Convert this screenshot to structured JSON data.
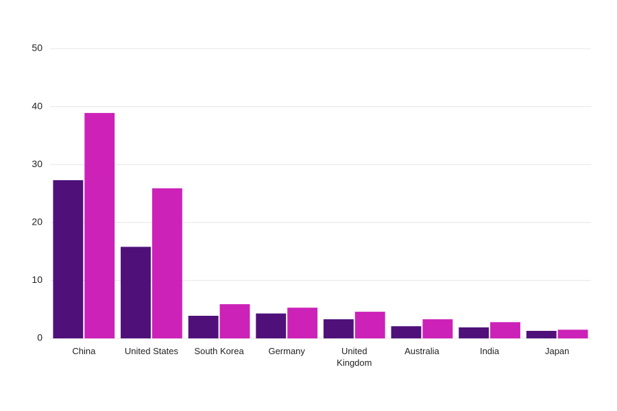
{
  "chart_data": {
    "type": "bar",
    "categories": [
      "China",
      "United States",
      "South Korea",
      "Germany",
      "United Kingdom",
      "Australia",
      "India",
      "Japan"
    ],
    "series": [
      {
        "color": "#4f1179",
        "values": [
          27.3,
          15.8,
          3.9,
          4.3,
          3.3,
          2.1,
          1.9,
          1.3
        ]
      },
      {
        "color": "#cc22b8",
        "values": [
          38.9,
          25.9,
          5.9,
          5.3,
          4.6,
          3.3,
          2.8,
          1.5
        ]
      }
    ],
    "ylim": [
      0,
      50
    ],
    "yticks": [
      0,
      10,
      20,
      30,
      40,
      50
    ],
    "grid": true
  }
}
